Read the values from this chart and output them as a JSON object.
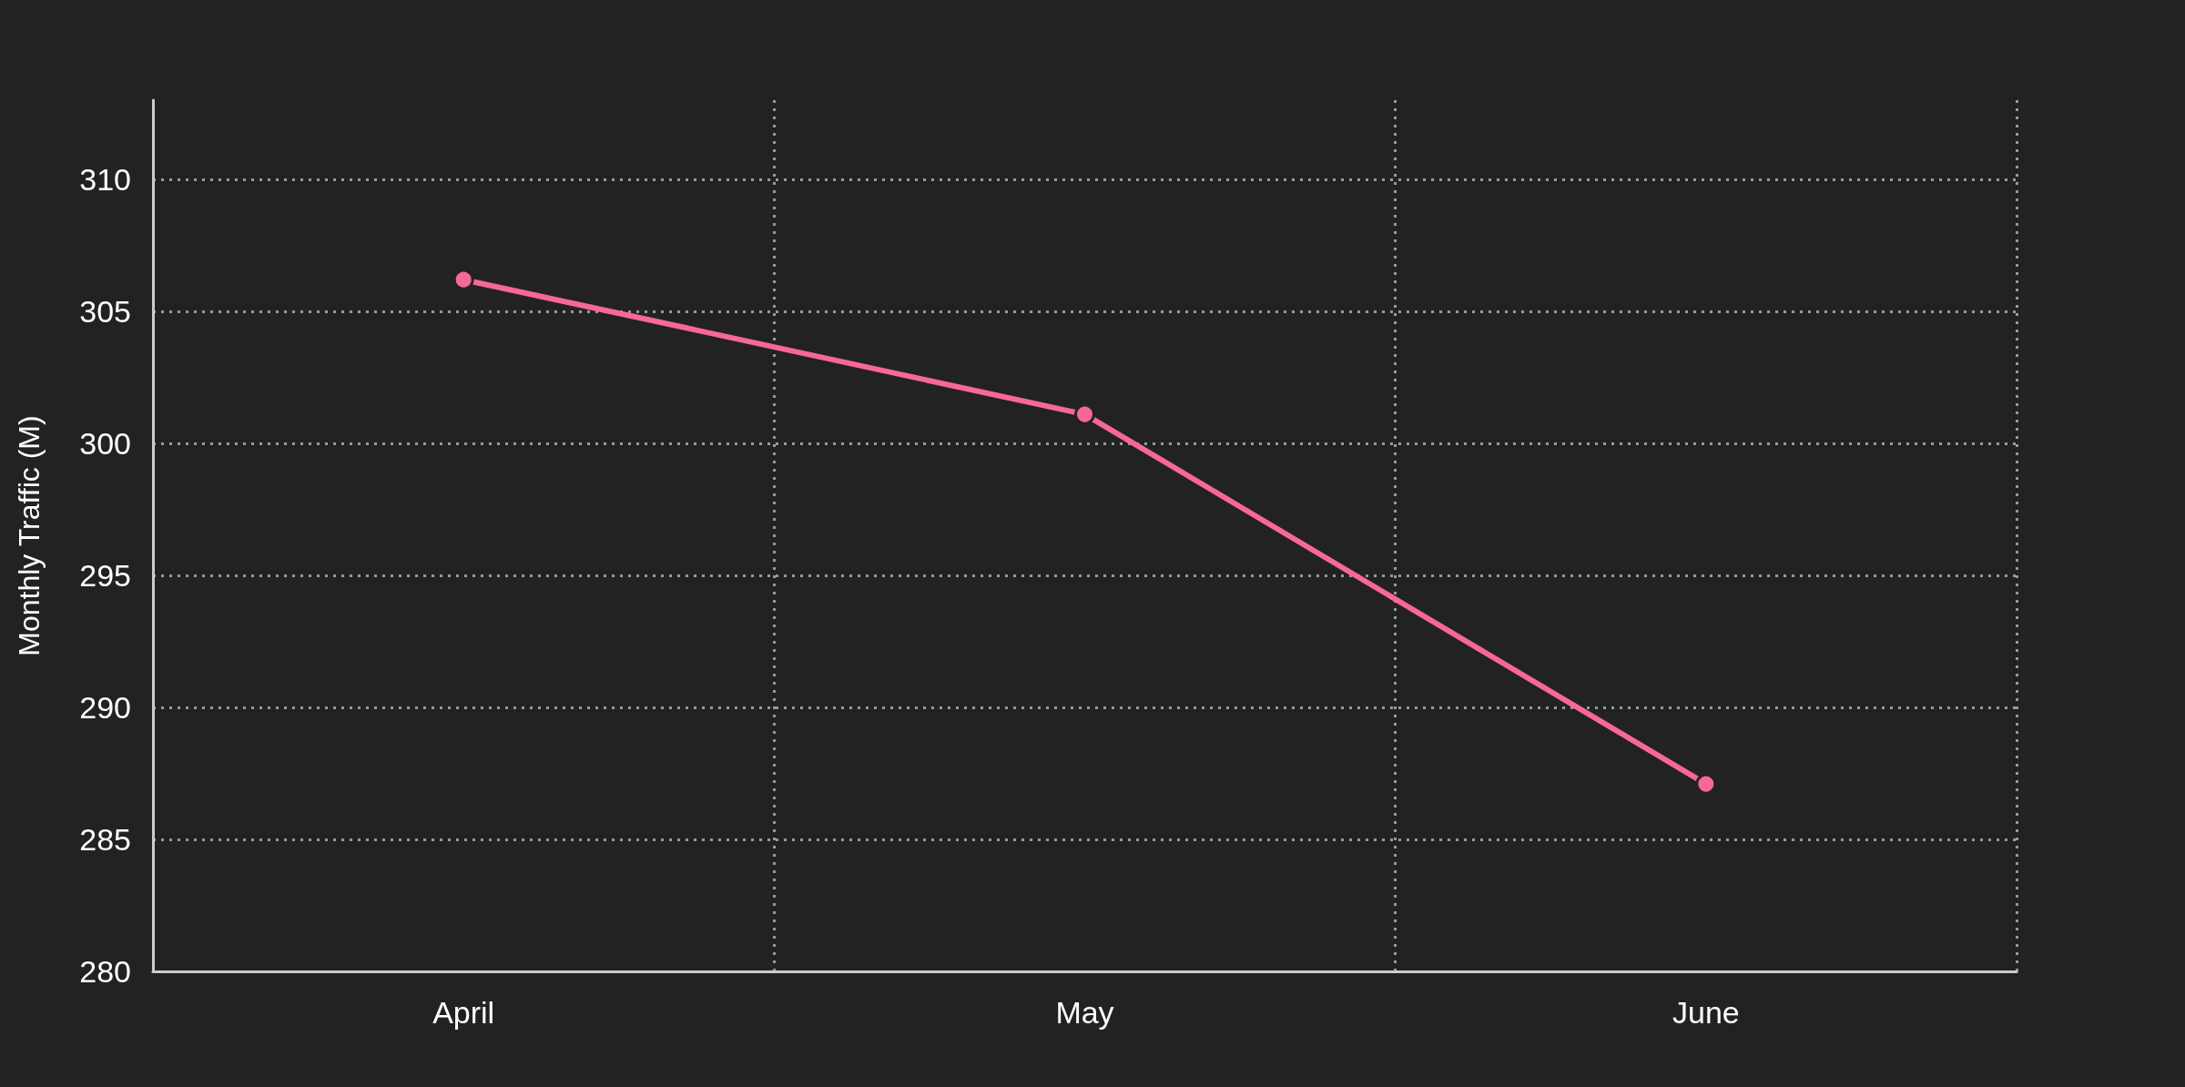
{
  "chart_data": {
    "type": "line",
    "ylabel": "Monthly Traffic (M)",
    "categories": [
      "April",
      "May",
      "June"
    ],
    "series": [
      {
        "color": "#f7679a",
        "values": [
          306.2,
          301.1,
          287.1
        ]
      }
    ],
    "ylim": [
      280,
      313
    ],
    "yticks": [
      280,
      285,
      290,
      295,
      300,
      305,
      310
    ],
    "grid": true,
    "marker": "circle",
    "line_style": "solid"
  }
}
